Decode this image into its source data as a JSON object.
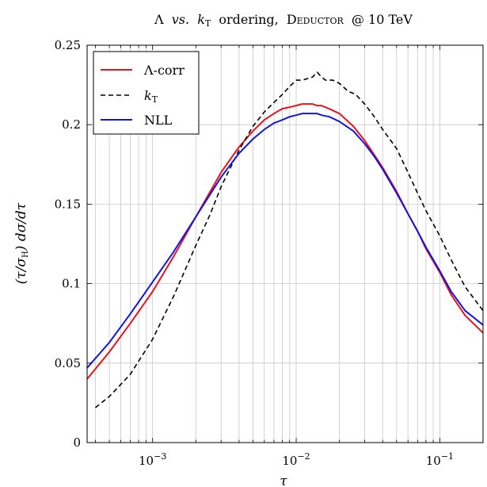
{
  "chart_data": {
    "type": "line",
    "title": "Λ vs. kT ordering, DEDUCTOR @ 10 TeV",
    "title_parts": {
      "lambda": "Λ",
      "vs": "vs.",
      "k": "k",
      "k_sub": "T",
      "ordering": "ordering,",
      "deductor": "Deductor",
      "at_energy": "@ 10 TeV"
    },
    "xlabel": "τ",
    "ylabel_parts": {
      "open": "(τ/σ",
      "sub": "H",
      "close": ") dσ/dτ"
    },
    "x_scale": "log",
    "xlim": [
      0.00035,
      0.2
    ],
    "ylim": [
      0,
      0.25
    ],
    "x_tick_labels": [
      {
        "value": 0.001,
        "base": "10",
        "exp": "−3"
      },
      {
        "value": 0.01,
        "base": "10",
        "exp": "−2"
      },
      {
        "value": 0.1,
        "base": "10",
        "exp": "−1"
      }
    ],
    "y_ticks": [
      0,
      0.05,
      0.1,
      0.15,
      0.2,
      0.25
    ],
    "y_tick_labels": [
      "0",
      "0.05",
      "0.1",
      "0.15",
      "0.2",
      "0.25"
    ],
    "grid": true,
    "legend_position": "top-left",
    "series": [
      {
        "name": "Λ-corr",
        "color": "#e8141a",
        "style": "solid",
        "x": [
          0.00035,
          0.0005,
          0.0007,
          0.001,
          0.0014,
          0.002,
          0.003,
          0.004,
          0.005,
          0.006,
          0.007,
          0.008,
          0.009,
          0.01,
          0.011,
          0.012,
          0.013,
          0.014,
          0.015,
          0.017,
          0.02,
          0.025,
          0.03,
          0.035,
          0.04,
          0.05,
          0.06,
          0.07,
          0.08,
          0.1,
          0.12,
          0.15,
          0.2
        ],
        "y": [
          0.04,
          0.057,
          0.075,
          0.095,
          0.117,
          0.142,
          0.17,
          0.186,
          0.196,
          0.203,
          0.207,
          0.21,
          0.211,
          0.212,
          0.213,
          0.213,
          0.213,
          0.212,
          0.212,
          0.21,
          0.207,
          0.199,
          0.19,
          0.181,
          0.173,
          0.158,
          0.144,
          0.133,
          0.122,
          0.107,
          0.093,
          0.08,
          0.069
        ]
      },
      {
        "name": "kT",
        "name_parts": {
          "k": "k",
          "sub": "T"
        },
        "color": "#000000",
        "style": "dashed",
        "x": [
          0.0004,
          0.0005,
          0.0007,
          0.001,
          0.0014,
          0.002,
          0.0025,
          0.003,
          0.004,
          0.005,
          0.006,
          0.007,
          0.008,
          0.009,
          0.01,
          0.011,
          0.012,
          0.013,
          0.014,
          0.015,
          0.016,
          0.018,
          0.02,
          0.023,
          0.026,
          0.03,
          0.035,
          0.04,
          0.05,
          0.06,
          0.07,
          0.08,
          0.1,
          0.12,
          0.15,
          0.2
        ],
        "y": [
          0.022,
          0.029,
          0.043,
          0.065,
          0.092,
          0.124,
          0.143,
          0.161,
          0.184,
          0.199,
          0.208,
          0.214,
          0.219,
          0.224,
          0.228,
          0.228,
          0.229,
          0.23,
          0.233,
          0.23,
          0.228,
          0.228,
          0.226,
          0.221,
          0.219,
          0.213,
          0.205,
          0.197,
          0.185,
          0.17,
          0.157,
          0.146,
          0.13,
          0.115,
          0.098,
          0.083
        ]
      },
      {
        "name": "NLL",
        "color": "#1414e0",
        "style": "solid",
        "x": [
          0.00035,
          0.0005,
          0.0007,
          0.001,
          0.0014,
          0.002,
          0.003,
          0.004,
          0.005,
          0.006,
          0.007,
          0.008,
          0.009,
          0.01,
          0.011,
          0.012,
          0.013,
          0.014,
          0.015,
          0.017,
          0.02,
          0.025,
          0.03,
          0.035,
          0.04,
          0.05,
          0.06,
          0.07,
          0.08,
          0.1,
          0.12,
          0.15,
          0.2
        ],
        "y": [
          0.047,
          0.063,
          0.081,
          0.101,
          0.12,
          0.142,
          0.167,
          0.182,
          0.191,
          0.197,
          0.201,
          0.203,
          0.205,
          0.206,
          0.207,
          0.207,
          0.207,
          0.207,
          0.206,
          0.205,
          0.202,
          0.196,
          0.188,
          0.18,
          0.172,
          0.157,
          0.144,
          0.133,
          0.123,
          0.108,
          0.095,
          0.083,
          0.074
        ]
      }
    ]
  }
}
